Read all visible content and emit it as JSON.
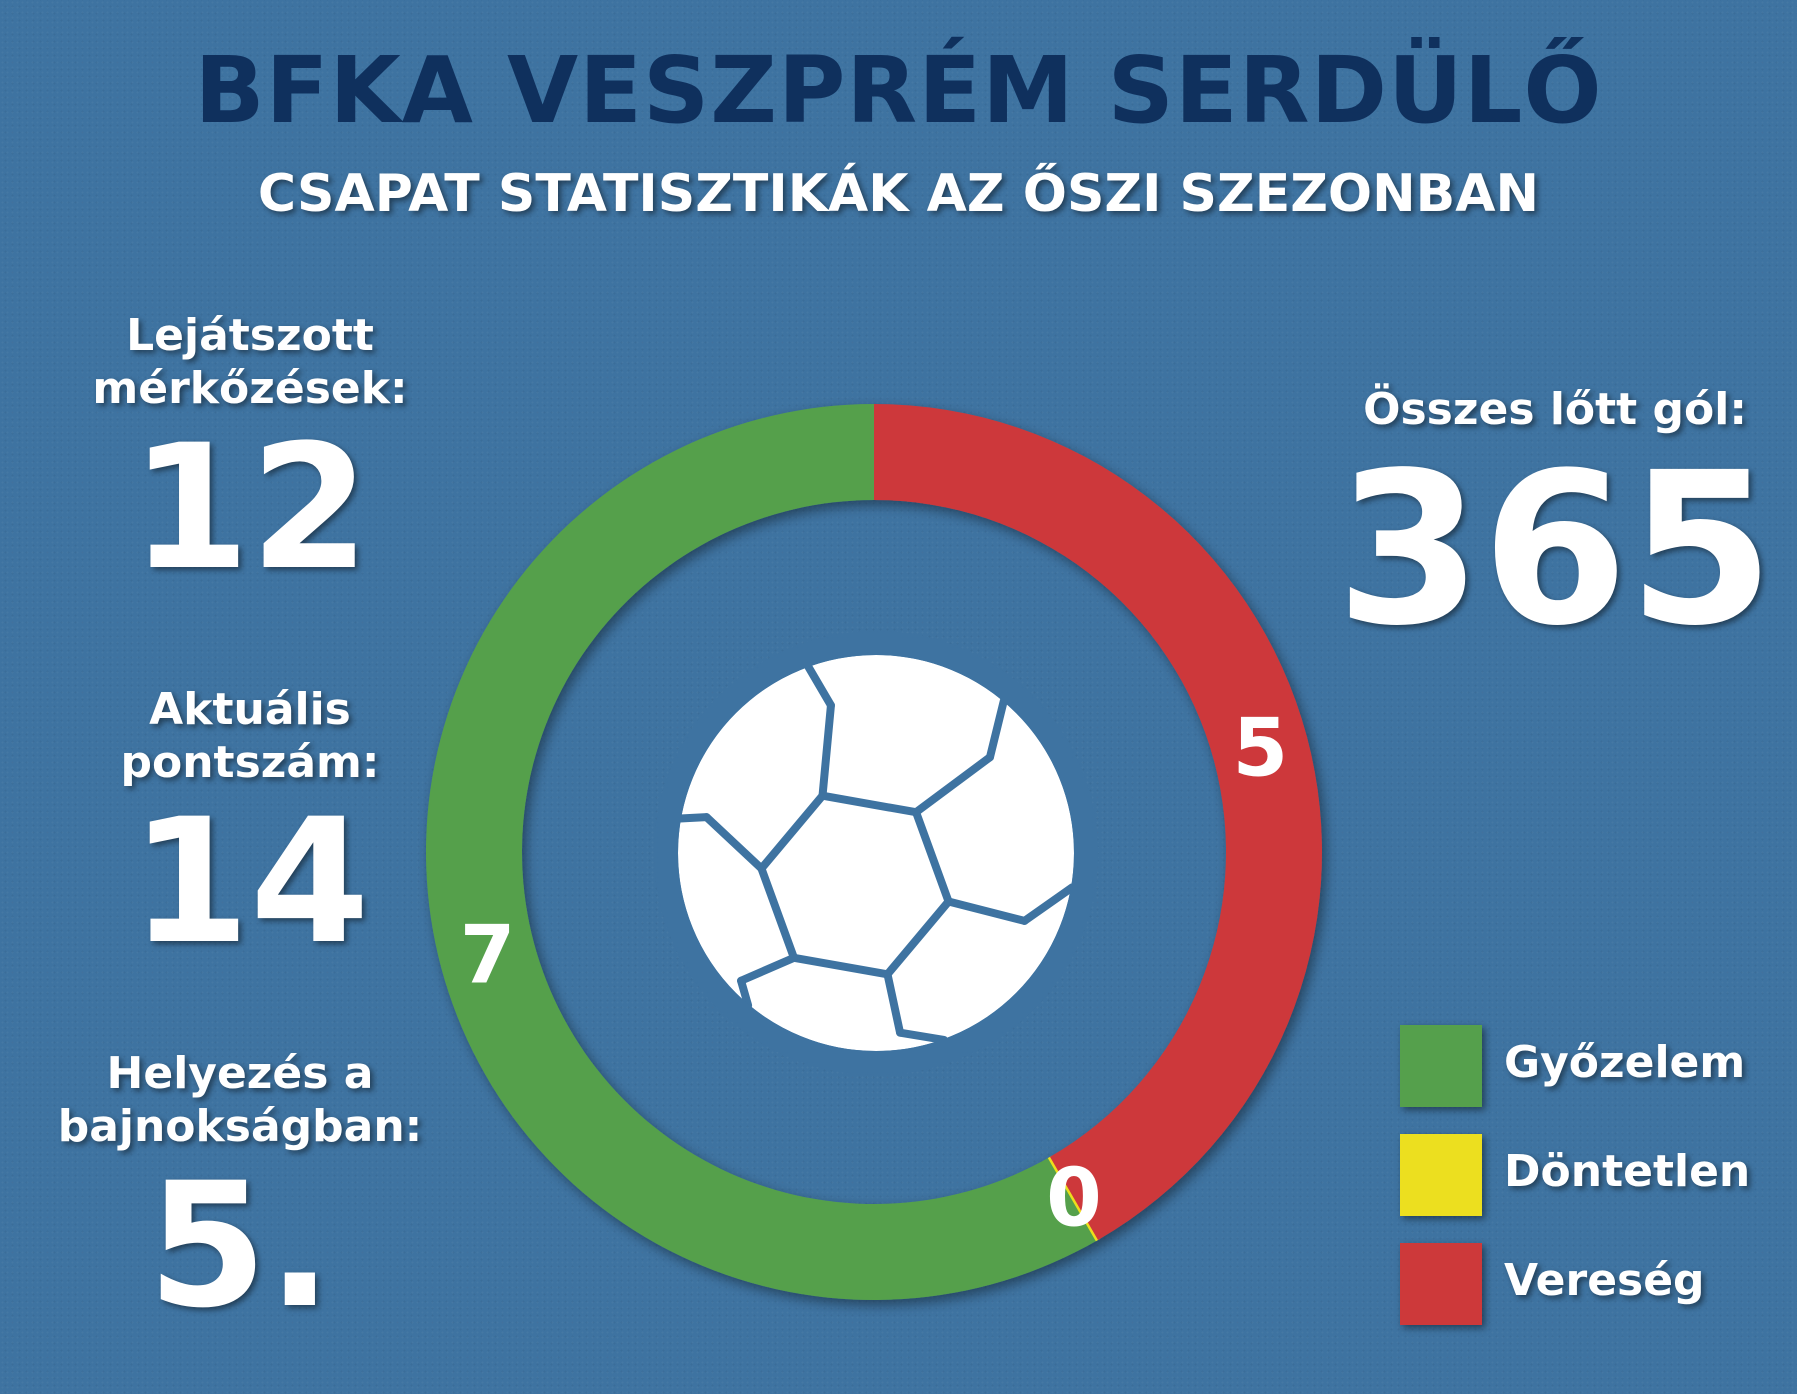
{
  "header": {
    "title": "BFKA VESZPRÉM SERDÜLŐ",
    "subtitle": "CSAPAT STATISZTIKÁK AZ ŐSZI SZEZONBAN"
  },
  "stats": {
    "matches": {
      "label": "Lejátszott\nmérkőzések:",
      "value": "12"
    },
    "points": {
      "label": "Aktuális\npontszám:",
      "value": "14"
    },
    "rank": {
      "label": "Helyezés a\nbajnokságban:",
      "value": "5."
    },
    "goals": {
      "label": "Összes lőtt gól:",
      "value": "365"
    }
  },
  "center_icon": "soccer-ball-icon",
  "colors": {
    "background": "#3e73a1",
    "title": "#0f305d",
    "win": "#55a04c",
    "draw": "#ecdf1f",
    "loss": "#cd393a",
    "text": "#ffffff"
  },
  "chart_data": {
    "type": "pie",
    "categories": [
      "Győzelem",
      "Döntetlen",
      "Vereség"
    ],
    "values": [
      7,
      0,
      5
    ],
    "data_labels": [
      "7",
      "0",
      "5"
    ],
    "legend_position": "bottom-right"
  },
  "legend": {
    "items": [
      {
        "label": "Győzelem",
        "color": "#55a04c"
      },
      {
        "label": "Döntetlen",
        "color": "#ecdf1f"
      },
      {
        "label": "Vereség",
        "color": "#cd393a"
      }
    ]
  }
}
